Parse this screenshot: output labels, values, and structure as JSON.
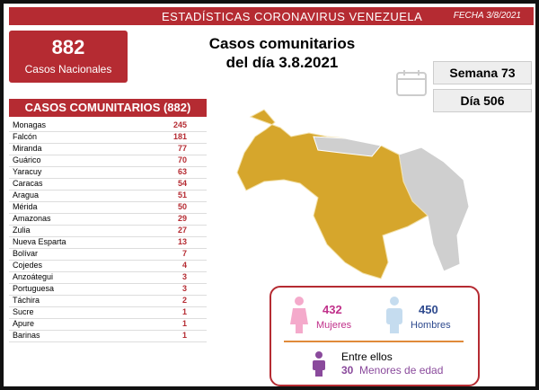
{
  "header": {
    "title": "ESTADÍSTICAS CORONAVIRUS VENEZUELA",
    "date": "FECHA 3/8/2021"
  },
  "national": {
    "value": "882",
    "label": "Casos Nacionales"
  },
  "title": {
    "line1": "Casos comunitarios",
    "line2": "del día 3.8.2021"
  },
  "week": "Semana 73",
  "day": "Día 506",
  "table": {
    "title": "CASOS COMUNITARIOS (882)",
    "rows": [
      [
        "Monagas",
        "245"
      ],
      [
        "Falcón",
        "181"
      ],
      [
        "Miranda",
        "77"
      ],
      [
        "Guárico",
        "70"
      ],
      [
        "Yaracuy",
        "63"
      ],
      [
        "Caracas",
        "54"
      ],
      [
        "Aragua",
        "51"
      ],
      [
        "Mérida",
        "50"
      ],
      [
        "Amazonas",
        "29"
      ],
      [
        "Zulia",
        "27"
      ],
      [
        "Nueva Esparta",
        "13"
      ],
      [
        "Bolívar",
        "7"
      ],
      [
        "Cojedes",
        "4"
      ],
      [
        "Anzoátegui",
        "3"
      ],
      [
        "Portuguesa",
        "3"
      ],
      [
        "Táchira",
        "2"
      ],
      [
        "Sucre",
        "1"
      ],
      [
        "Apure",
        "1"
      ],
      [
        "Barinas",
        "1"
      ]
    ]
  },
  "gender": {
    "women_value": "432",
    "women_label": "Mujeres",
    "men_value": "450",
    "men_label": "Hombres",
    "minors_intro": "Entre ellos",
    "minors_value": "30",
    "minors_label": "Menores de edad"
  }
}
